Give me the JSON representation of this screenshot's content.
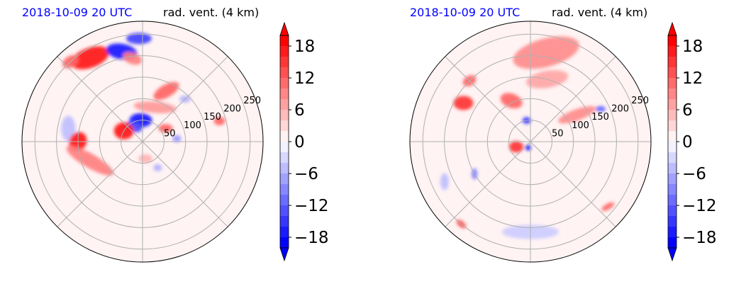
{
  "chart_data": [
    {
      "type": "heatmap",
      "projection": "polar",
      "date_label": "2018-10-09 20 UTC",
      "title": "rad. vent. (4 km)",
      "radial_ticks": [
        50,
        100,
        150,
        200,
        250
      ],
      "angular_grid_deg": 45,
      "grid": true,
      "colorbar": {
        "ticks": [
          "18",
          "12",
          "6",
          "0",
          "−6",
          "−12",
          "−18"
        ],
        "tick_values": [
          18,
          12,
          6,
          0,
          -6,
          -12,
          -18
        ],
        "range": [
          -20,
          20
        ],
        "extend": "both",
        "colors": {
          "negative": "#0000ff",
          "zero": "#ffffff",
          "positive": "#ff0000"
        }
      },
      "features": [
        {
          "r": 230,
          "theta": 122,
          "v": 18,
          "rx": 28,
          "ry": 14,
          "rot": -20
        },
        {
          "r": 215,
          "theta": 103,
          "v": -18,
          "rx": 22,
          "ry": 11,
          "rot": 10
        },
        {
          "r": 240,
          "theta": 92,
          "v": -15,
          "rx": 18,
          "ry": 8,
          "rot": 0
        },
        {
          "r": 195,
          "theta": 97,
          "v": 10,
          "rx": 14,
          "ry": 8,
          "rot": 20
        },
        {
          "r": 250,
          "theta": 132,
          "v": 12,
          "rx": 12,
          "ry": 8,
          "rot": -30
        },
        {
          "r": 130,
          "theta": 65,
          "v": 12,
          "rx": 20,
          "ry": 9,
          "rot": -30
        },
        {
          "r": 85,
          "theta": 70,
          "v": 8,
          "rx": 30,
          "ry": 8,
          "rot": 5
        },
        {
          "r": 50,
          "theta": 95,
          "v": -18,
          "rx": 16,
          "ry": 10,
          "rot": 0
        },
        {
          "r": 40,
          "theta": 120,
          "v": -14,
          "rx": 12,
          "ry": 7,
          "rot": 20
        },
        {
          "r": 50,
          "theta": 150,
          "v": 18,
          "rx": 14,
          "ry": 12,
          "rot": 0
        },
        {
          "r": 62,
          "theta": 30,
          "v": 12,
          "rx": 10,
          "ry": 6,
          "rot": 0
        },
        {
          "r": 80,
          "theta": 5,
          "v": -8,
          "rx": 6,
          "ry": 5,
          "rot": 0
        },
        {
          "r": 175,
          "theta": 170,
          "v": -5,
          "rx": 10,
          "ry": 18,
          "rot": 0
        },
        {
          "r": 150,
          "theta": 180,
          "v": 18,
          "rx": 12,
          "ry": 14,
          "rot": 30
        },
        {
          "r": 130,
          "theta": 200,
          "v": 10,
          "rx": 38,
          "ry": 10,
          "rot": 30
        },
        {
          "r": 40,
          "theta": 280,
          "v": 6,
          "rx": 10,
          "ry": 6,
          "rot": 0
        },
        {
          "r": 70,
          "theta": 300,
          "v": -6,
          "rx": 6,
          "ry": 5,
          "rot": 0
        },
        {
          "r": 185,
          "theta": 15,
          "v": 12,
          "rx": 8,
          "ry": 6,
          "rot": 0
        },
        {
          "r": 140,
          "theta": 45,
          "v": -6,
          "rx": 8,
          "ry": 5,
          "rot": 0
        }
      ]
    },
    {
      "type": "heatmap",
      "projection": "polar",
      "date_label": "2018-10-09 20 UTC",
      "title": "rad. vent. (4 km)",
      "radial_ticks": [
        50,
        100,
        150,
        200,
        250
      ],
      "angular_grid_deg": 45,
      "grid": true,
      "colorbar": {
        "ticks": [
          "18",
          "12",
          "6",
          "0",
          "−6",
          "−12",
          "−18"
        ],
        "tick_values": [
          18,
          12,
          6,
          0,
          -6,
          -12,
          -18
        ],
        "range": [
          -20,
          20
        ],
        "extend": "both",
        "colors": {
          "negative": "#0000ff",
          "zero": "#ffffff",
          "positive": "#ff0000"
        }
      },
      "features": [
        {
          "r": 210,
          "theta": 80,
          "v": 9,
          "rx": 48,
          "ry": 20,
          "rot": -15
        },
        {
          "r": 150,
          "theta": 75,
          "v": 7,
          "rx": 30,
          "ry": 12,
          "rot": -10
        },
        {
          "r": 200,
          "theta": 135,
          "v": 12,
          "rx": 10,
          "ry": 7,
          "rot": -30
        },
        {
          "r": 180,
          "theta": 150,
          "v": 16,
          "rx": 14,
          "ry": 10,
          "rot": 0
        },
        {
          "r": 105,
          "theta": 115,
          "v": 12,
          "rx": 16,
          "ry": 10,
          "rot": 20
        },
        {
          "r": 50,
          "theta": 100,
          "v": -15,
          "rx": 6,
          "ry": 5,
          "rot": 0
        },
        {
          "r": 35,
          "theta": 200,
          "v": 16,
          "rx": 10,
          "ry": 8,
          "rot": 0
        },
        {
          "r": 15,
          "theta": 250,
          "v": -18,
          "rx": 4,
          "ry": 4,
          "rot": 0
        },
        {
          "r": 125,
          "theta": 30,
          "v": 9,
          "rx": 28,
          "ry": 8,
          "rot": -20
        },
        {
          "r": 180,
          "theta": 25,
          "v": -12,
          "rx": 7,
          "ry": 4,
          "rot": 0
        },
        {
          "r": 150,
          "theta": 210,
          "v": -10,
          "rx": 4,
          "ry": 8,
          "rot": 0
        },
        {
          "r": 220,
          "theta": 205,
          "v": -5,
          "rx": 6,
          "ry": 12,
          "rot": 0
        },
        {
          "r": 250,
          "theta": 230,
          "v": 14,
          "rx": 8,
          "ry": 4,
          "rot": 40
        },
        {
          "r": 235,
          "theta": 320,
          "v": 12,
          "rx": 10,
          "ry": 4,
          "rot": -30
        },
        {
          "r": 210,
          "theta": 270,
          "v": -4,
          "rx": 40,
          "ry": 10,
          "rot": 0
        }
      ]
    }
  ]
}
